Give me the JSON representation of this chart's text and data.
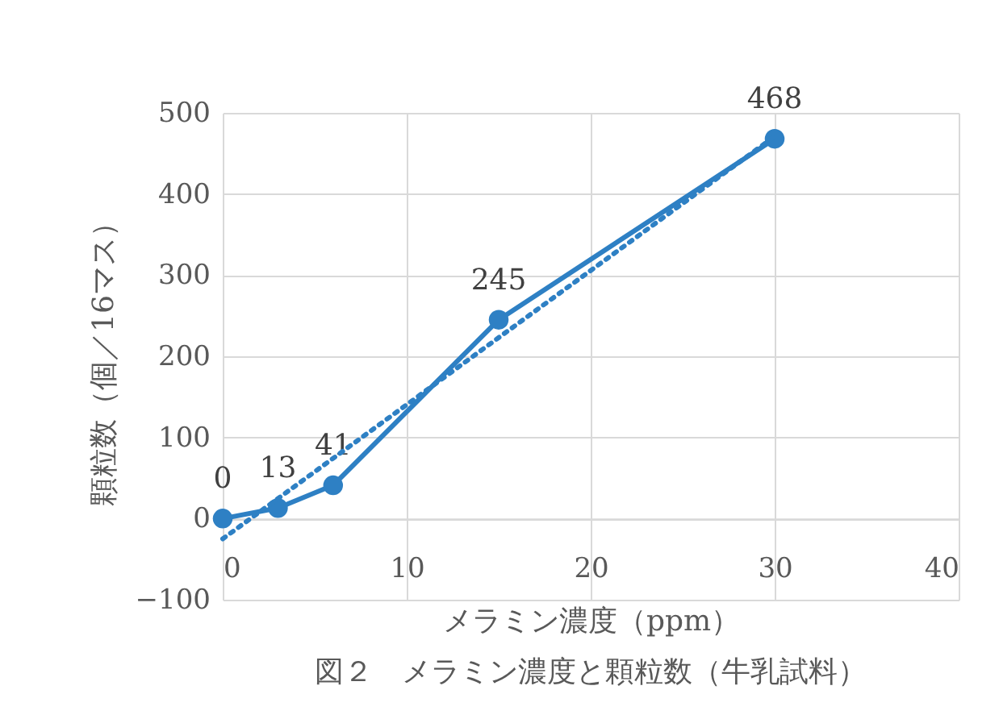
{
  "chart_data": {
    "type": "line",
    "xlabel": "メラミン濃度（ppm）",
    "ylabel": "顆粒数（個／16マス）",
    "annotations": [
      "図２　メラミン濃度と顆粒数（牛乳試料）"
    ],
    "series": [
      {
        "color": "#2e80c4",
        "x": [
          0,
          3,
          6,
          15,
          30
        ],
        "values": [
          0,
          13,
          41,
          245,
          468
        ],
        "value_labels": [
          "0",
          "13",
          "41",
          "245",
          "468"
        ],
        "marker": "circle",
        "line_style": "solid"
      },
      {
        "color": "#2e80c4",
        "x": [
          0,
          30
        ],
        "values": [
          -25,
          471
        ],
        "marker": "none",
        "line_style": "dotted"
      }
    ],
    "xlim": [
      0,
      40
    ],
    "xticks": [
      0,
      10,
      20,
      30,
      40
    ],
    "ylim": [
      -100,
      500
    ],
    "yticks": [
      -100,
      0,
      100,
      200,
      300,
      400,
      500
    ],
    "grid": true
  }
}
